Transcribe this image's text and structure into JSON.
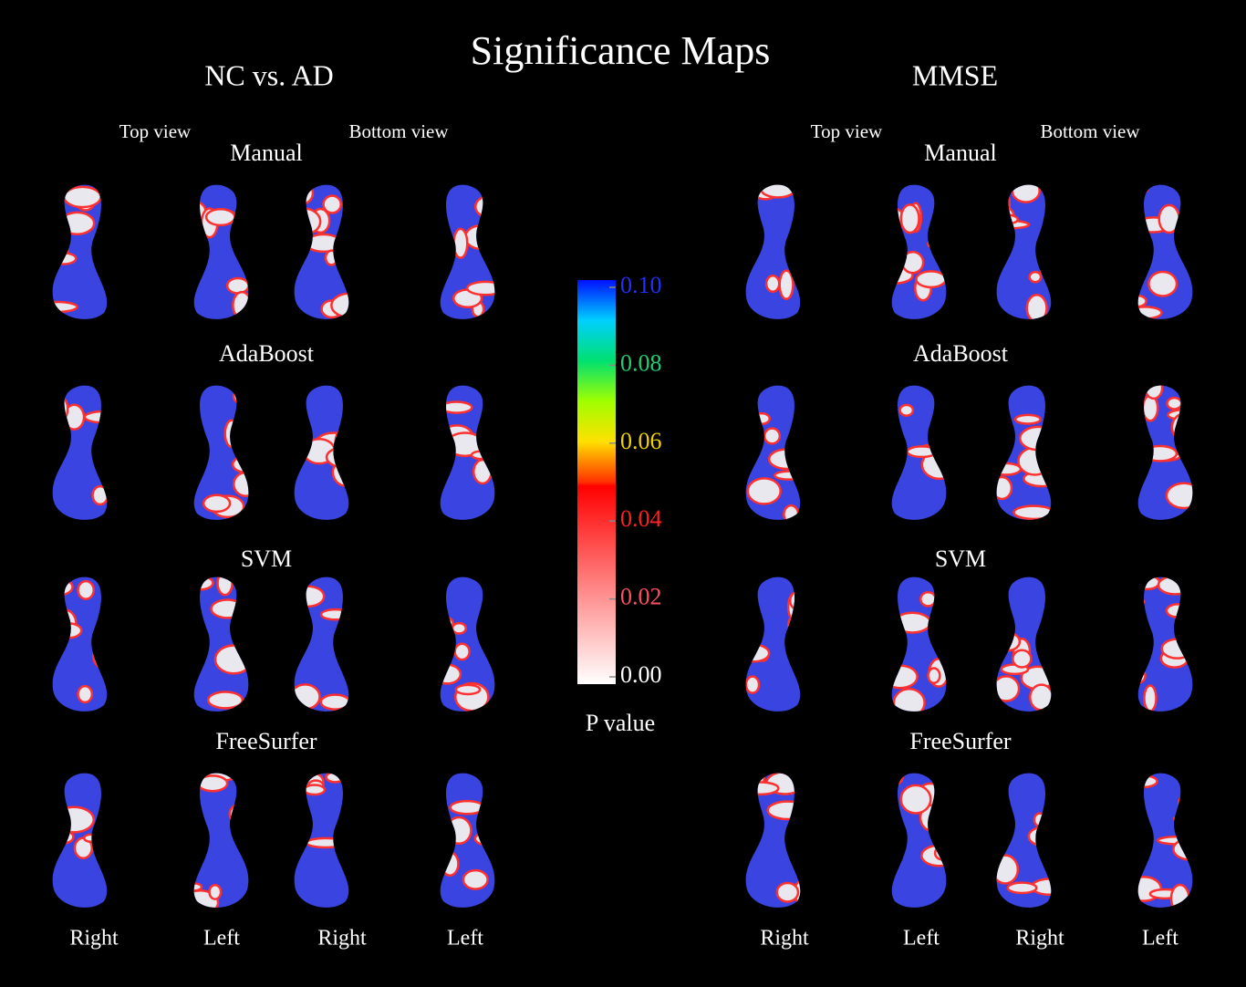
{
  "title": "Significance Maps",
  "panels": [
    {
      "title": "NC vs. AD",
      "view_labels": [
        "Top view",
        "Bottom view"
      ],
      "methods": [
        "Manual",
        "AdaBoost",
        "SVM",
        "FreeSurfer"
      ],
      "side_labels": [
        "Right",
        "Left",
        "Right",
        "Left"
      ]
    },
    {
      "title": "MMSE",
      "view_labels": [
        "Top view",
        "Bottom view"
      ],
      "methods": [
        "Manual",
        "AdaBoost",
        "SVM",
        "FreeSurfer"
      ],
      "side_labels": [
        "Right",
        "Left",
        "Right",
        "Left"
      ]
    }
  ],
  "colorbar": {
    "label": "P value",
    "ticks": [
      "0.10",
      "0.08",
      "0.06",
      "0.04",
      "0.02",
      "0.00"
    ]
  }
}
